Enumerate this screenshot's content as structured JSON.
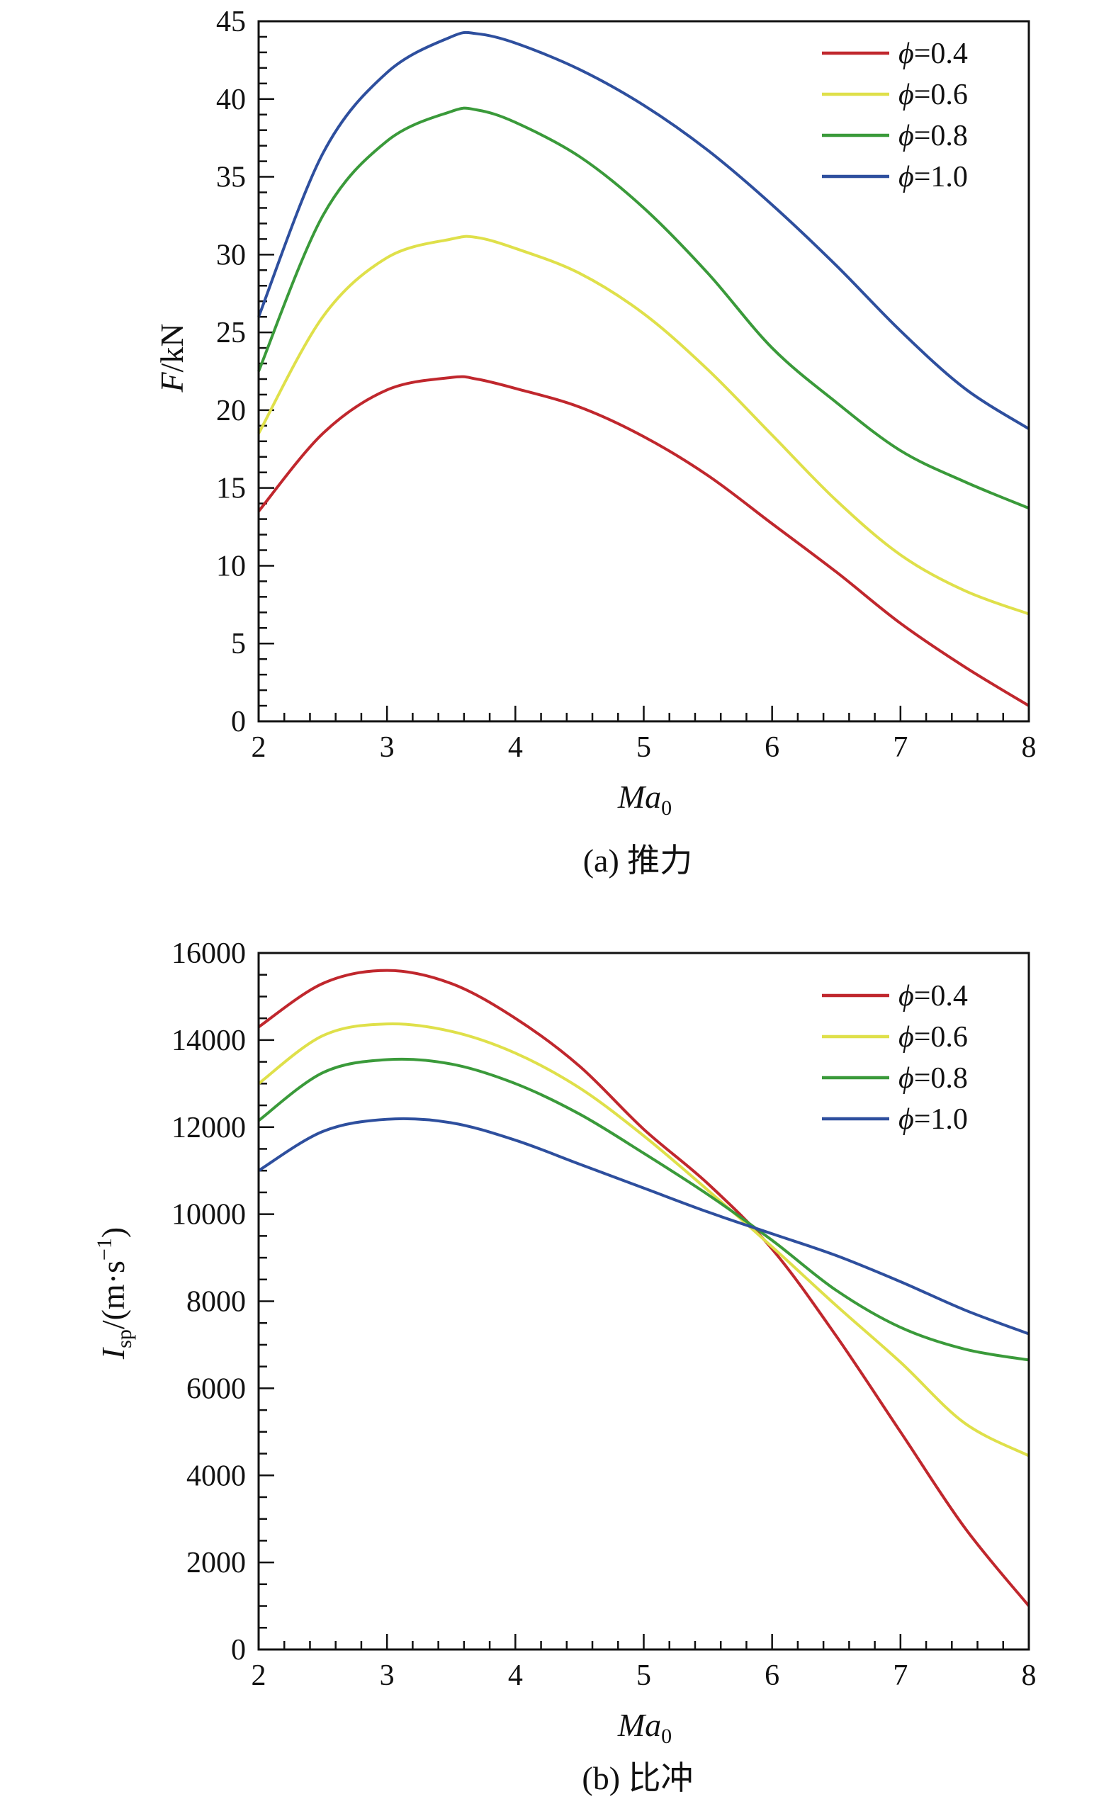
{
  "charts": [
    {
      "id": "a",
      "caption": "(a) 推力",
      "ylabel_var": "F",
      "ylabel_unit": "/kN",
      "xlabel_var": "Ma",
      "xlabel_sub": "0",
      "legend_symbol": "ϕ"
    },
    {
      "id": "b",
      "caption": "(b) 比冲",
      "ylabel_var": "I",
      "ylabel_sub": "sp",
      "ylabel_unit": "/(m·s",
      "ylabel_sup": "−1",
      "ylabel_close": ")",
      "xlabel_var": "Ma",
      "xlabel_sub": "0",
      "legend_symbol": "ϕ"
    }
  ],
  "chart_data": [
    {
      "type": "line",
      "title": "(a) 推力",
      "xlabel": "Ma0",
      "ylabel": "F/kN",
      "xlim": [
        2,
        8
      ],
      "ylim": [
        0,
        45
      ],
      "xticks": [
        "2",
        "3",
        "4",
        "5",
        "6",
        "7",
        "8"
      ],
      "yticks": [
        "0",
        "5",
        "10",
        "15",
        "20",
        "25",
        "30",
        "35",
        "40",
        "45"
      ],
      "x": [
        2,
        2.5,
        3,
        3.5,
        3.7,
        4,
        4.5,
        5,
        5.5,
        6,
        6.5,
        7,
        7.5,
        8
      ],
      "legend_position": "top-right",
      "series": [
        {
          "name": "=0.4",
          "color": "#c0272d",
          "values": [
            13.5,
            18.5,
            21.3,
            22.1,
            22.0,
            21.4,
            20.2,
            18.3,
            15.8,
            12.7,
            9.6,
            6.3,
            3.5,
            1.0
          ]
        },
        {
          "name": "=0.6",
          "color": "#dfe04a",
          "values": [
            18.5,
            26.0,
            29.8,
            31.0,
            31.1,
            30.4,
            28.8,
            26.2,
            22.6,
            18.4,
            14.2,
            10.7,
            8.4,
            6.9
          ]
        },
        {
          "name": "=0.8",
          "color": "#3a9a3a",
          "values": [
            22.5,
            32.5,
            37.3,
            39.2,
            39.3,
            38.5,
            36.3,
            33.0,
            28.8,
            24.0,
            20.5,
            17.4,
            15.4,
            13.7
          ]
        },
        {
          "name": "=1.0",
          "color": "#2e4f9e",
          "values": [
            26.0,
            36.5,
            41.7,
            44.0,
            44.2,
            43.6,
            41.9,
            39.6,
            36.7,
            33.2,
            29.3,
            25.1,
            21.4,
            18.8
          ]
        }
      ]
    },
    {
      "type": "line",
      "title": "(b) 比冲",
      "xlabel": "Ma0",
      "ylabel": "Isp/(m·s−1)",
      "xlim": [
        2,
        8
      ],
      "ylim": [
        0,
        16000
      ],
      "xticks": [
        "2",
        "3",
        "4",
        "5",
        "6",
        "7",
        "8"
      ],
      "yticks": [
        "0",
        "2000",
        "4000",
        "6000",
        "8000",
        "10000",
        "12000",
        "14000",
        "16000"
      ],
      "x": [
        2,
        2.5,
        3,
        3.5,
        4,
        4.5,
        5,
        5.5,
        6,
        6.5,
        7,
        7.5,
        8
      ],
      "legend_position": "top-right",
      "series": [
        {
          "name": "=0.4",
          "color": "#c0272d",
          "values": [
            14300,
            15300,
            15600,
            15300,
            14500,
            13400,
            11950,
            10700,
            9200,
            7200,
            5000,
            2800,
            1000
          ]
        },
        {
          "name": "=0.6",
          "color": "#dfe04a",
          "values": [
            13000,
            14100,
            14370,
            14200,
            13700,
            12900,
            11800,
            10550,
            9250,
            7900,
            6600,
            5200,
            4450
          ]
        },
        {
          "name": "=0.8",
          "color": "#3a9a3a",
          "values": [
            12150,
            13250,
            13550,
            13450,
            13000,
            12300,
            11400,
            10450,
            9400,
            8250,
            7400,
            6900,
            6650
          ]
        },
        {
          "name": "=1.0",
          "color": "#2e4f9e",
          "values": [
            11000,
            11900,
            12180,
            12100,
            11700,
            11150,
            10600,
            10050,
            9550,
            9050,
            8450,
            7800,
            7250
          ]
        }
      ]
    }
  ]
}
